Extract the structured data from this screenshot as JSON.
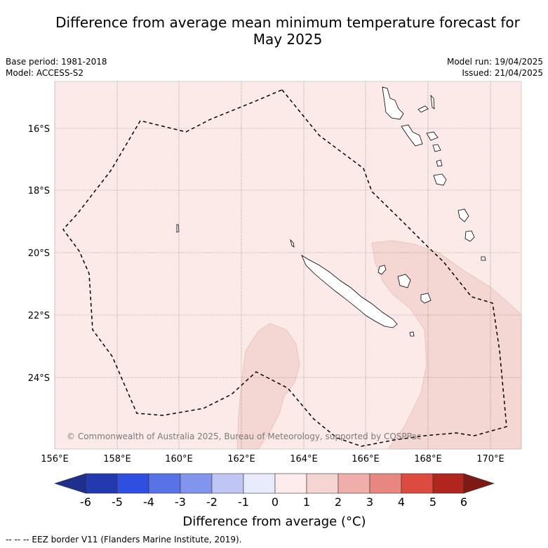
{
  "title_line1": "Difference from average mean minimum temperature forecast for",
  "title_line2": "May 2025",
  "base_period": "Base period: 1981-2018",
  "model": "Model: ACCESS-S2",
  "model_run": "Model run: 19/04/2025",
  "issued": "Issued: 21/04/2025",
  "latitude_labels": [
    "16°S",
    "18°S",
    "20°S",
    "22°S",
    "24°S"
  ],
  "longitude_labels": [
    "156°E",
    "158°E",
    "160°E",
    "162°E",
    "164°E",
    "166°E",
    "168°E",
    "170°E"
  ],
  "copyright": "© Commonwealth of Australia 2025, Bureau of Meteorology, supported by COSPPac",
  "colorbar": {
    "labels": [
      "-6",
      "-5",
      "-4",
      "-3",
      "-2",
      "-1",
      "0",
      "1",
      "2",
      "3",
      "4",
      "5",
      "6"
    ],
    "colors": [
      "#1f2f8c",
      "#2339b0",
      "#2f4fe0",
      "#5873e6",
      "#8295ec",
      "#bfc6f3",
      "#e8ebfb",
      "#fdeceb",
      "#f5d5d2",
      "#f0aeaa",
      "#e8877f",
      "#dd4a3e",
      "#b0251e",
      "#7d1a14"
    ],
    "title": "Difference from average (°C)"
  },
  "map_colors": {
    "background": "#fbeae8",
    "anomaly_1_2": "#f4d6d3"
  },
  "footer": "-- -- -- EEZ border V11 (Flanders Marine Institute, 2019)."
}
